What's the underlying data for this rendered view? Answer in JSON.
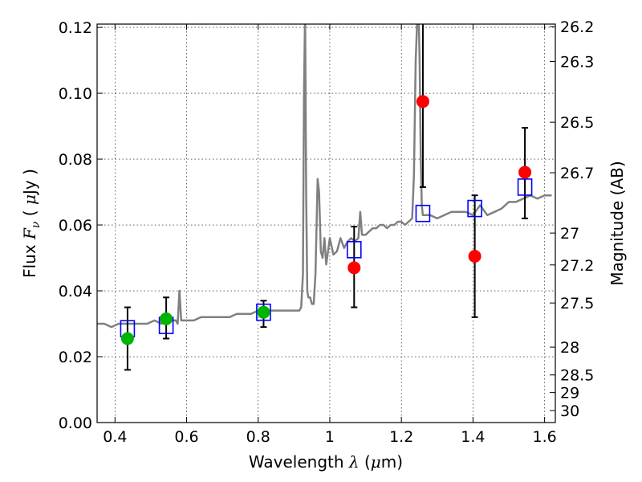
{
  "chart_data": {
    "type": "scatter",
    "title": "",
    "xlabel": {
      "prefix": "Wavelength",
      "symbol": "λ",
      "unit_open": "(",
      "unit_mu": "μ",
      "unit_rest": "m)"
    },
    "ylabel": {
      "prefix": "Flux",
      "symbol": "F",
      "subscript": "ν",
      "unit_open": "(",
      "unit_mu": "μ",
      "unit_rest": "Jy",
      "unit_close": ")"
    },
    "y2label": "Magnitude (AB)",
    "xlim": [
      0.35,
      1.63
    ],
    "ylim": [
      0.0,
      0.121
    ],
    "grid": true,
    "x_ticks": [
      {
        "value": 0.4,
        "label": "0.4"
      },
      {
        "value": 0.6,
        "label": "0.6"
      },
      {
        "value": 0.8,
        "label": "0.8"
      },
      {
        "value": 1.0,
        "label": "1"
      },
      {
        "value": 1.2,
        "label": "1.2"
      },
      {
        "value": 1.4,
        "label": "1.4"
      },
      {
        "value": 1.6,
        "label": "1.6"
      }
    ],
    "y_ticks": [
      {
        "value": 0.0,
        "label": "0.00"
      },
      {
        "value": 0.02,
        "label": "0.02"
      },
      {
        "value": 0.04,
        "label": "0.04"
      },
      {
        "value": 0.06,
        "label": "0.06"
      },
      {
        "value": 0.08,
        "label": "0.08"
      },
      {
        "value": 0.1,
        "label": "0.10"
      },
      {
        "value": 0.12,
        "label": "0.12"
      }
    ],
    "y2_ticks": [
      {
        "mag": 26.2,
        "label": "26.2"
      },
      {
        "mag": 26.3,
        "label": "26.3"
      },
      {
        "mag": 26.5,
        "label": "26.5"
      },
      {
        "mag": 26.7,
        "label": "26.7"
      },
      {
        "mag": 27.0,
        "label": "27"
      },
      {
        "mag": 27.2,
        "label": "27.2"
      },
      {
        "mag": 27.5,
        "label": "27.5"
      },
      {
        "mag": 28.0,
        "label": "28"
      },
      {
        "mag": 28.5,
        "label": "28.5"
      },
      {
        "mag": 29.0,
        "label": "29"
      },
      {
        "mag": 30.0,
        "label": "30"
      }
    ],
    "spectrum": {
      "color": "#808080",
      "x": [
        0.35,
        0.37,
        0.39,
        0.41,
        0.43,
        0.45,
        0.47,
        0.49,
        0.51,
        0.53,
        0.55,
        0.57,
        0.575,
        0.58,
        0.585,
        0.6,
        0.62,
        0.64,
        0.66,
        0.68,
        0.7,
        0.72,
        0.74,
        0.76,
        0.78,
        0.8,
        0.82,
        0.84,
        0.86,
        0.88,
        0.9,
        0.915,
        0.92,
        0.925,
        0.928,
        0.931,
        0.934,
        0.937,
        0.94,
        0.945,
        0.95,
        0.955,
        0.96,
        0.963,
        0.966,
        0.97,
        0.975,
        0.98,
        0.985,
        0.99,
        1.0,
        1.01,
        1.02,
        1.03,
        1.04,
        1.05,
        1.06,
        1.07,
        1.08,
        1.085,
        1.09,
        1.1,
        1.11,
        1.12,
        1.13,
        1.14,
        1.15,
        1.16,
        1.17,
        1.18,
        1.19,
        1.2,
        1.21,
        1.22,
        1.23,
        1.235,
        1.24,
        1.245,
        1.248,
        1.251,
        1.254,
        1.257,
        1.26,
        1.27,
        1.28,
        1.3,
        1.32,
        1.34,
        1.36,
        1.38,
        1.4,
        1.42,
        1.44,
        1.46,
        1.48,
        1.5,
        1.52,
        1.54,
        1.56,
        1.58,
        1.6,
        1.62
      ],
      "y": [
        0.03,
        0.03,
        0.029,
        0.03,
        0.03,
        0.03,
        0.03,
        0.03,
        0.031,
        0.03,
        0.031,
        0.031,
        0.03,
        0.04,
        0.031,
        0.031,
        0.031,
        0.032,
        0.032,
        0.032,
        0.032,
        0.032,
        0.033,
        0.033,
        0.033,
        0.034,
        0.034,
        0.034,
        0.034,
        0.034,
        0.034,
        0.034,
        0.035,
        0.045,
        0.1,
        0.125,
        0.07,
        0.04,
        0.038,
        0.038,
        0.036,
        0.036,
        0.045,
        0.06,
        0.074,
        0.07,
        0.052,
        0.05,
        0.056,
        0.048,
        0.056,
        0.051,
        0.052,
        0.056,
        0.053,
        0.055,
        0.056,
        0.055,
        0.056,
        0.064,
        0.057,
        0.057,
        0.058,
        0.059,
        0.059,
        0.06,
        0.06,
        0.059,
        0.06,
        0.06,
        0.061,
        0.061,
        0.06,
        0.061,
        0.062,
        0.075,
        0.11,
        0.125,
        0.125,
        0.11,
        0.08,
        0.066,
        0.063,
        0.063,
        0.063,
        0.062,
        0.063,
        0.064,
        0.064,
        0.064,
        0.063,
        0.066,
        0.063,
        0.064,
        0.065,
        0.067,
        0.067,
        0.068,
        0.069,
        0.068,
        0.069,
        0.069
      ]
    },
    "series": [
      {
        "marker": "open-square",
        "color": "#0000ff",
        "points": [
          {
            "x": 0.435,
            "y": 0.0285
          },
          {
            "x": 0.543,
            "y": 0.0295
          },
          {
            "x": 0.815,
            "y": 0.0335
          },
          {
            "x": 1.068,
            "y": 0.0525
          },
          {
            "x": 1.26,
            "y": 0.0635
          },
          {
            "x": 1.405,
            "y": 0.065
          },
          {
            "x": 1.545,
            "y": 0.0715
          }
        ]
      },
      {
        "marker": "filled-circle",
        "color": "#00b400",
        "points": [
          {
            "x": 0.435,
            "y": 0.0255,
            "ylo": 0.016,
            "yhi": 0.035
          },
          {
            "x": 0.543,
            "y": 0.0315,
            "ylo": 0.0255,
            "yhi": 0.038
          },
          {
            "x": 0.815,
            "y": 0.0335,
            "ylo": 0.029,
            "yhi": 0.037
          }
        ]
      },
      {
        "marker": "filled-circle",
        "color": "#ff0000",
        "points": [
          {
            "x": 1.068,
            "y": 0.047,
            "ylo": 0.035,
            "yhi": 0.0595
          },
          {
            "x": 1.26,
            "y": 0.0975,
            "ylo": 0.0715,
            "yhi": 0.125
          },
          {
            "x": 1.405,
            "y": 0.0505,
            "ylo": 0.032,
            "yhi": 0.069
          },
          {
            "x": 1.545,
            "y": 0.076,
            "ylo": 0.062,
            "yhi": 0.0895
          }
        ]
      }
    ]
  }
}
